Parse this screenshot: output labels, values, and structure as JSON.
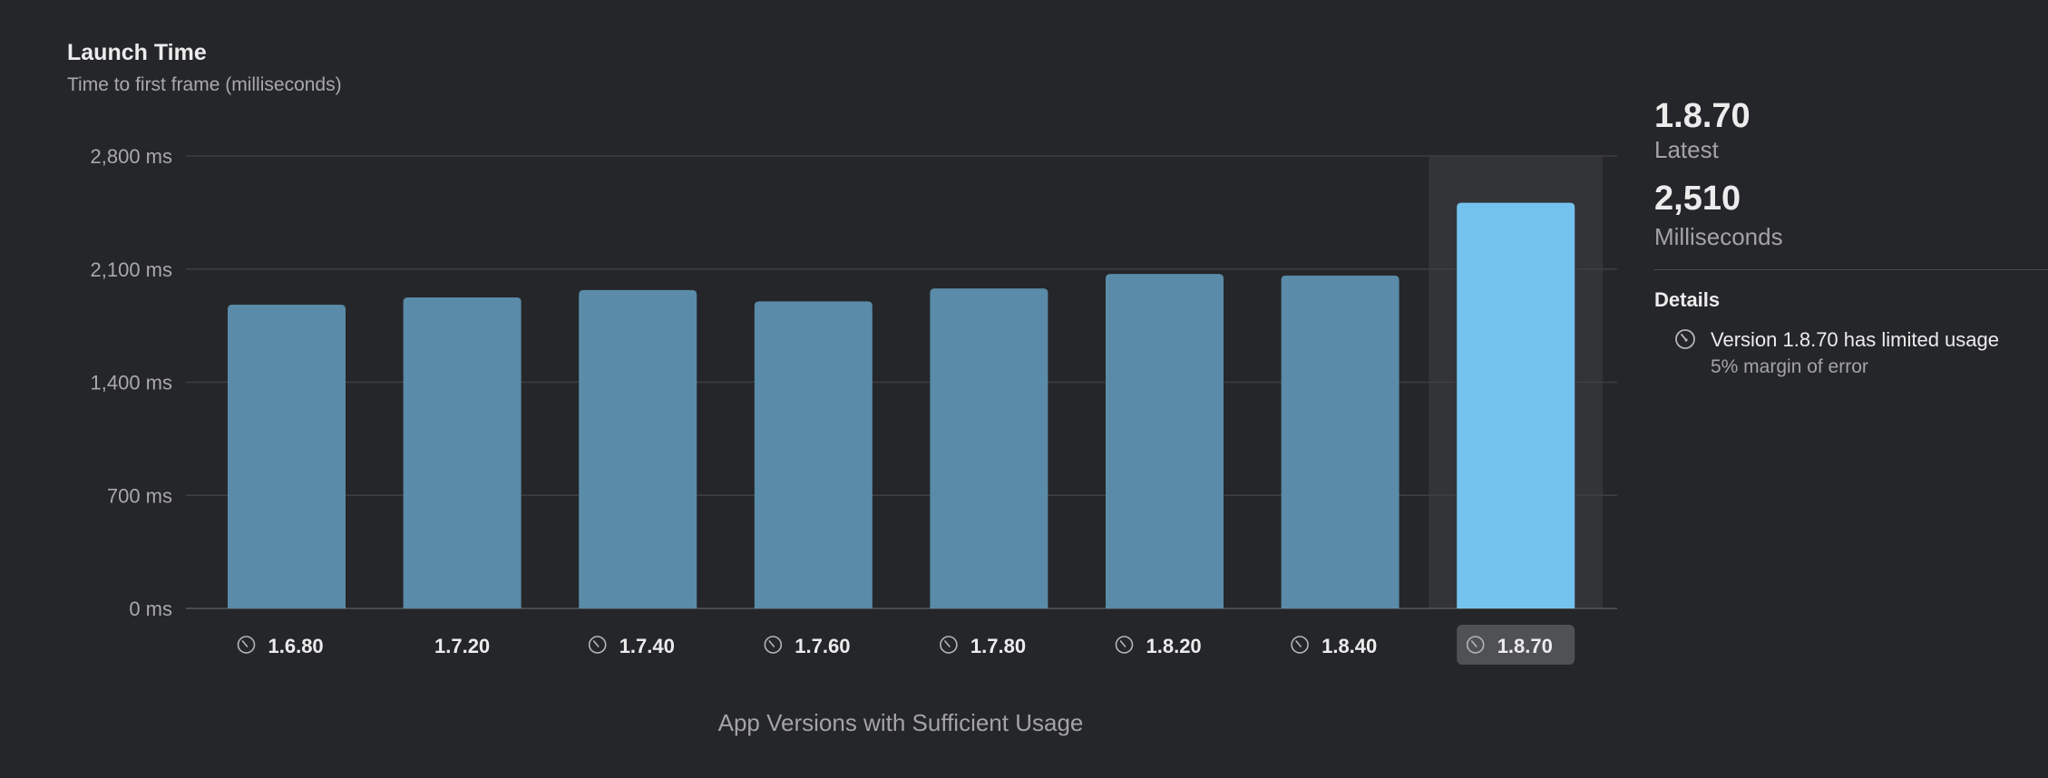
{
  "header": {
    "title": "Launch Time",
    "subtitle": "Time to first frame (milliseconds)"
  },
  "chart_data": {
    "type": "bar",
    "categories": [
      "1.6.80",
      "1.7.20",
      "1.7.40",
      "1.7.60",
      "1.7.80",
      "1.8.20",
      "1.8.40",
      "1.8.70"
    ],
    "values": [
      1880,
      1925,
      1970,
      1900,
      1980,
      2070,
      2060,
      2510
    ],
    "limited_usage": [
      true,
      false,
      true,
      true,
      true,
      true,
      true,
      true
    ],
    "selected_index": 7,
    "ylim": [
      0,
      2800
    ],
    "yticks": [
      0,
      700,
      1400,
      2100,
      2800
    ],
    "ytick_labels": [
      "0 ms",
      "700 ms",
      "1,400 ms",
      "2,100 ms",
      "2,800 ms"
    ],
    "xlabel": "App Versions with Sufficient Usage",
    "ylabel": "",
    "grid": true,
    "colors": {
      "bar": "#5a8ba8",
      "selected_bar": "#74c3ee",
      "selected_bg": "#333437",
      "grid": "#3e3f43"
    }
  },
  "sidebar": {
    "version": "1.8.70",
    "version_caption": "Latest",
    "value": "2,510",
    "value_caption": "Milliseconds",
    "details_heading": "Details",
    "detail_icon": "gauge-icon",
    "detail_text": "Version 1.8.70 has limited usage",
    "detail_subtext": "5% margin of error"
  }
}
